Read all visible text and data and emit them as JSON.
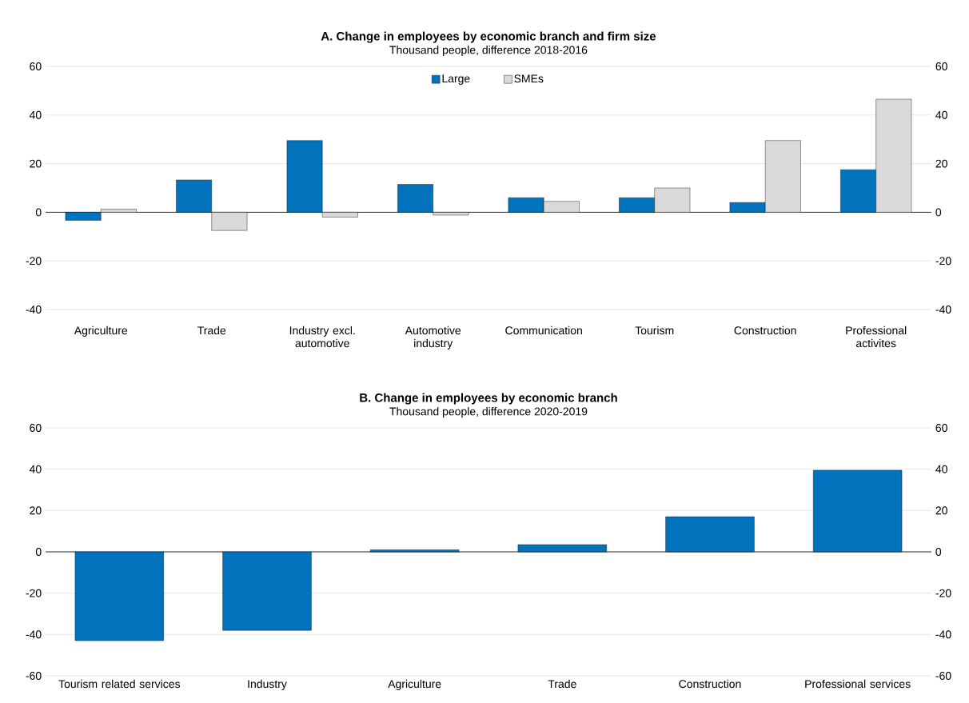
{
  "chart_data": [
    {
      "type": "bar",
      "title": "A. Change in employees by economic branch and firm size",
      "subtitle": "Thousand people, difference 2018-2016",
      "categories": [
        "Agriculture",
        "Trade",
        "Industry excl. automotive",
        "Automotive industry",
        "Communication",
        "Tourism",
        "Construction",
        "Professional activites"
      ],
      "series": [
        {
          "name": "Large",
          "color": "#0173bd",
          "values": [
            -3.3,
            13.3,
            29.5,
            11.5,
            6,
            6,
            4,
            17.5
          ]
        },
        {
          "name": "SMEs",
          "color": "#d9d9d9",
          "values": [
            1.3,
            -7.5,
            -2,
            -1.2,
            4.5,
            10,
            29.5,
            46.5
          ]
        }
      ],
      "ylim": [
        -40,
        60
      ],
      "yticks": [
        -40,
        -20,
        0,
        20,
        40,
        60
      ],
      "y2lim": [
        -40,
        60
      ],
      "y2ticks": [
        -40,
        -20,
        0,
        20,
        40,
        60
      ],
      "grid": "y",
      "legend": "top"
    },
    {
      "type": "bar",
      "title": "B. Change in employees by economic branch",
      "subtitle": "Thousand people, difference 2020-2019",
      "categories": [
        "Tourism related services",
        "Industry",
        "Agriculture",
        "Trade",
        "Construction",
        "Professional services"
      ],
      "values": [
        -43,
        -38,
        1,
        3.5,
        17,
        39.5
      ],
      "color": "#0173bd",
      "ylim": [
        -60,
        60
      ],
      "yticks": [
        -60,
        -40,
        -20,
        0,
        20,
        40,
        60
      ],
      "y2lim": [
        -60,
        60
      ],
      "y2ticks": [
        -60,
        -40,
        -20,
        0,
        20,
        40,
        60
      ],
      "grid": "y"
    }
  ]
}
